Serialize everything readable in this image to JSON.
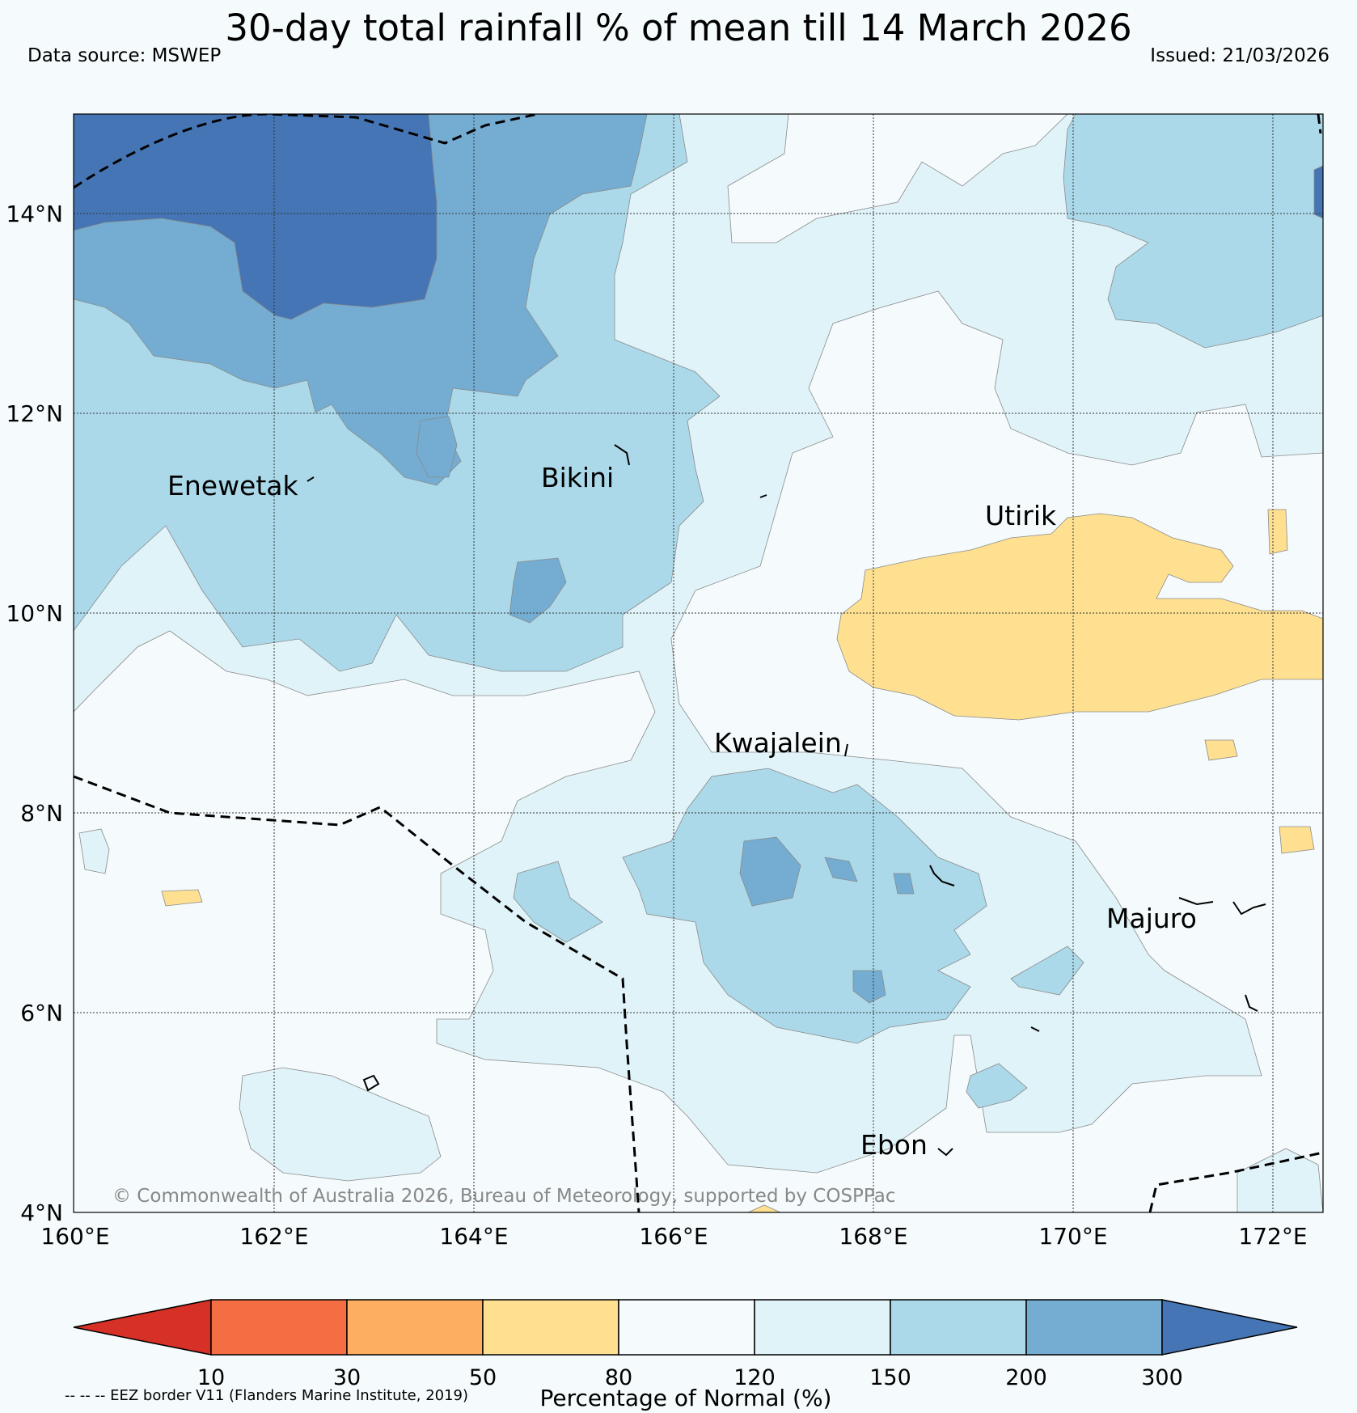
{
  "title": "30-day total rainfall % of mean till 14 March 2026",
  "data_source": "Data source: MSWEP",
  "issued": "Issued: 21/03/2026",
  "axes": {
    "x_ticks": [
      "160°E",
      "162°E",
      "164°E",
      "166°E",
      "168°E",
      "170°E",
      "172°E"
    ],
    "y_ticks": [
      "14°N",
      "12°N",
      "10°N",
      "8°N",
      "6°N",
      "4°N"
    ]
  },
  "places": [
    {
      "name": "Enewetak"
    },
    {
      "name": "Bikini"
    },
    {
      "name": "Utirik"
    },
    {
      "name": "Kwajalein"
    },
    {
      "name": "Majuro"
    },
    {
      "name": "Ebon"
    }
  ],
  "copyright": "© Commonwealth of Australia 2026, Bureau of Meteorology, supported by COSPPac",
  "eez_note": "-- -- -- EEZ border V11 (Flanders Marine Institute, 2019)",
  "colorbar": {
    "label": "Percentage of Normal (%)",
    "ticks": [
      "10",
      "30",
      "50",
      "80",
      "120",
      "150",
      "200",
      "300"
    ],
    "colors": [
      "#d73027",
      "#f46d43",
      "#fdae61",
      "#fee090",
      "#f5fbfd",
      "#e0f3f8",
      "#abd9e9",
      "#74add1",
      "#4575b4"
    ]
  }
}
